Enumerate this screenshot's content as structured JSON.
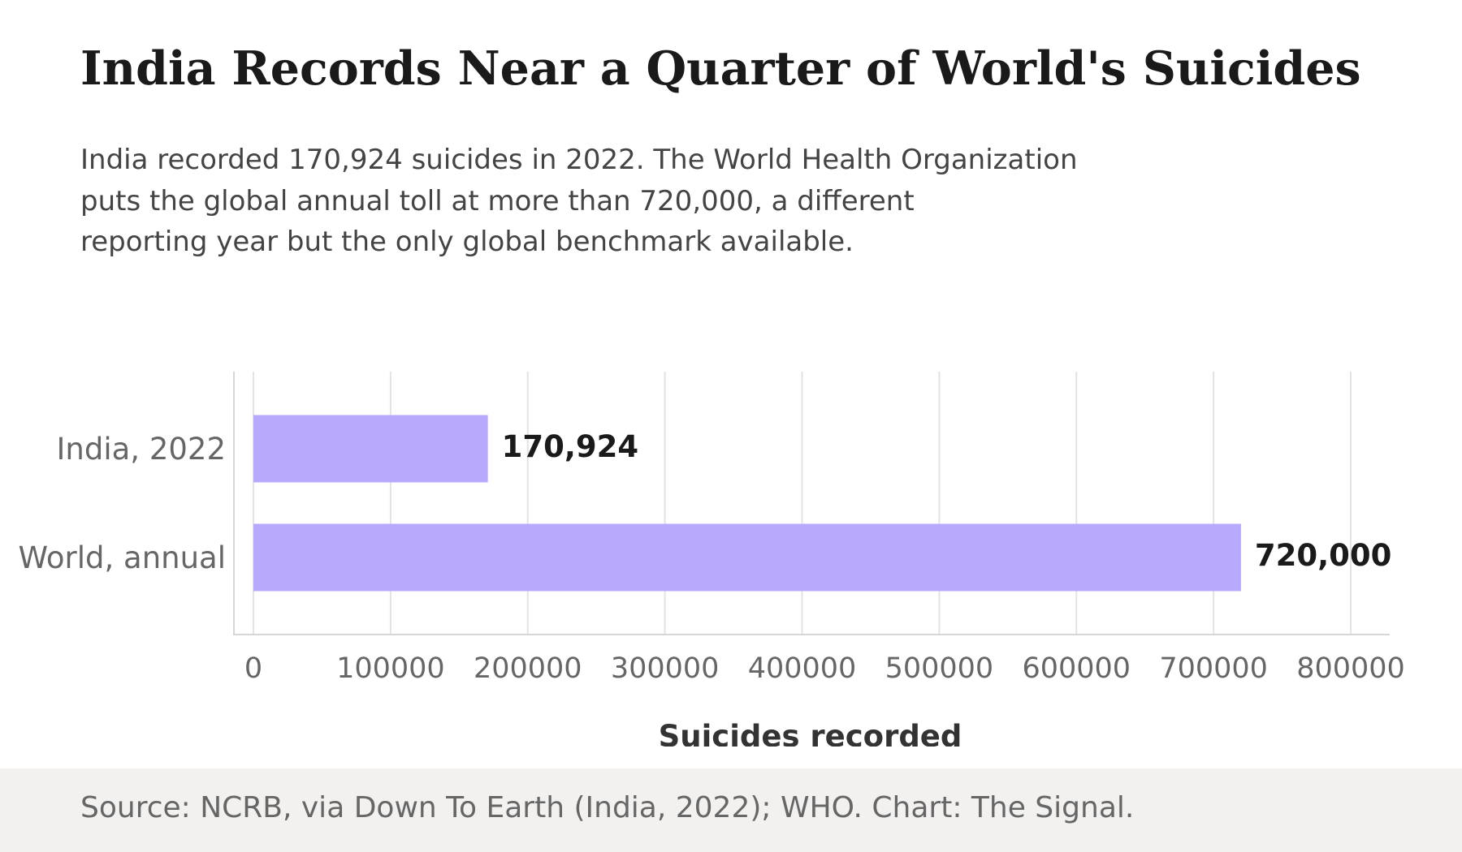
{
  "header": {
    "title": "India Records Near a Quarter of World's Suicides",
    "subtitle": "India recorded 170,924 suicides in 2022. The World Health Organization\nputs the global annual toll at more than 720,000, a different\nreporting year but the only global benchmark available."
  },
  "footer": {
    "source": "Source: NCRB, via Down To Earth (India, 2022); WHO. Chart: The Signal."
  },
  "colors": {
    "bar": "#b8a9fc",
    "grid": "#e3e3e3",
    "axis": "#d6d6d6",
    "tick_text": "#666666",
    "value_text": "#1a1a1a",
    "axis_title": "#333333",
    "footer_bg": "#f2f1f0"
  },
  "chart_data": {
    "type": "bar",
    "orientation": "horizontal",
    "categories": [
      "India, 2022",
      "World, annual"
    ],
    "values": [
      170924,
      720000
    ],
    "value_labels": [
      "170,924",
      "720,000"
    ],
    "xlabel": "Suicides recorded",
    "ylabel": "",
    "xlim": [
      0,
      800000
    ],
    "xticks": [
      0,
      100000,
      200000,
      300000,
      400000,
      500000,
      600000,
      700000,
      800000
    ],
    "xtick_labels": [
      "0",
      "100000",
      "200000",
      "300000",
      "400000",
      "500000",
      "600000",
      "700000",
      "800000"
    ],
    "grid": "vertical",
    "legend": "none"
  }
}
